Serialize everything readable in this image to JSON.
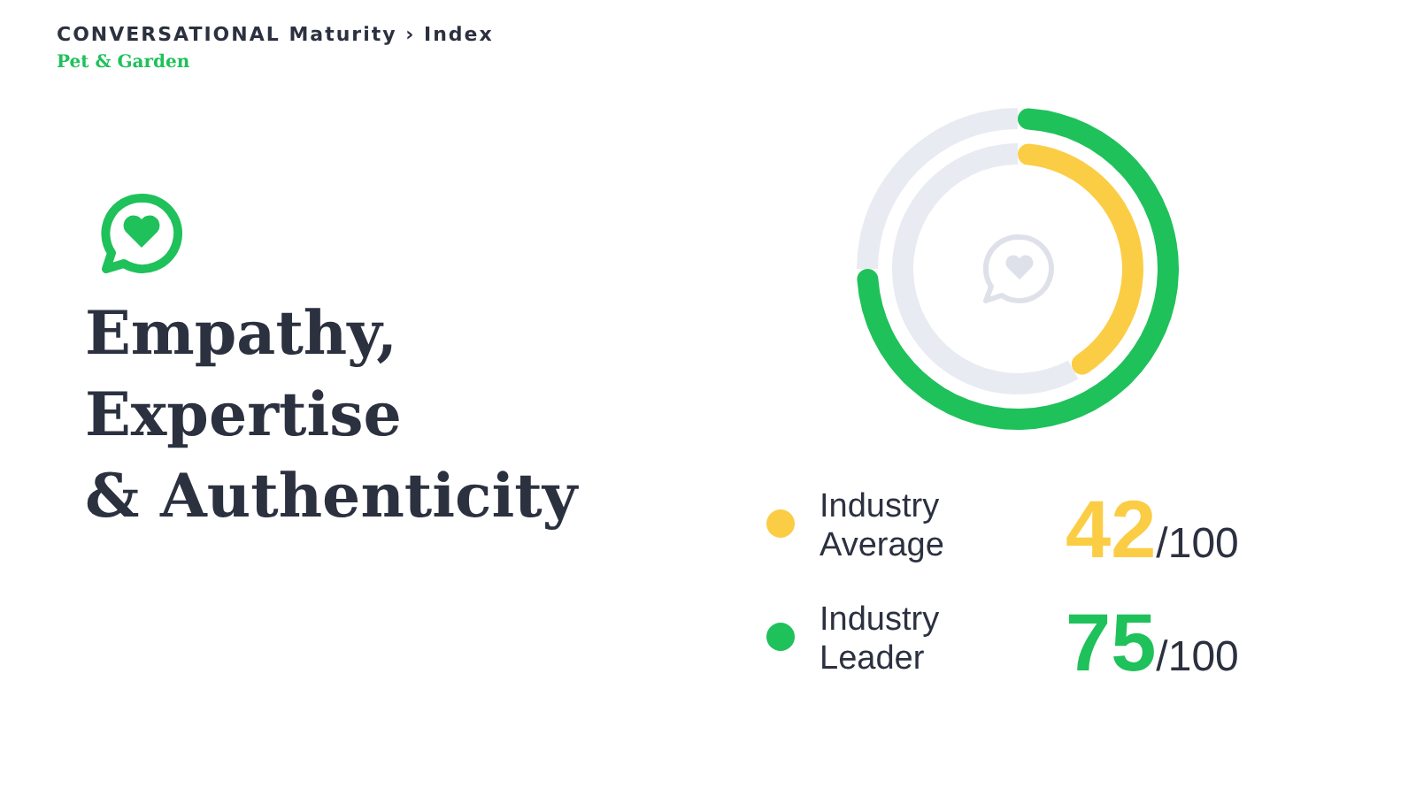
{
  "chart_data": [
    {
      "type": "donut",
      "title": "Empathy,\nExpertise\n& Authenticity",
      "annotations": [
        "CONVERSATIONAL Maturity › Index",
        "Pet & Garden"
      ],
      "categories": [
        "Industry Average",
        null
      ],
      "values": [
        42,
        58
      ],
      "colors": [
        "#fbcd45",
        "#e9ebf2"
      ],
      "value_labels": [
        "42/100",
        null
      ]
    },
    {
      "type": "donut",
      "categories": [
        "Industry Leader",
        null
      ],
      "values": [
        75,
        25
      ],
      "colors": [
        "#1fc15a",
        "#e9ebf2"
      ],
      "value_labels": [
        "75/100",
        null
      ]
    }
  ]
}
